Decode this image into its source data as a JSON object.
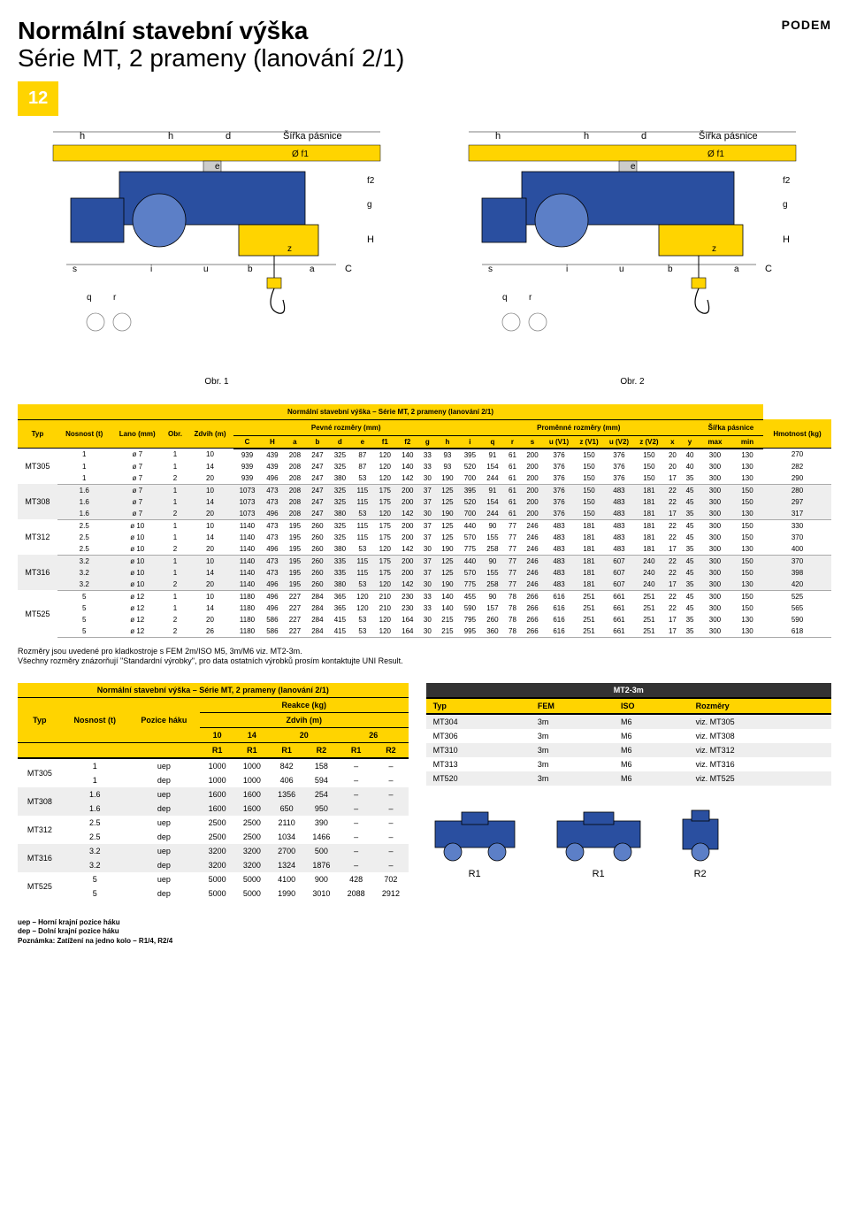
{
  "logo": "PODEM",
  "title_bold": "Normální stavební výška",
  "title_light": "Série MT, 2 prameny (lanování 2/1)",
  "page_number": "12",
  "diagram_labels": {
    "h": "h",
    "d": "d",
    "sirka": "Šířka pásnice",
    "e": "e",
    "f1": "Ø f1",
    "f2": "f2",
    "g": "g",
    "H": "H",
    "s": "s",
    "i": "i",
    "u": "u",
    "b": "b",
    "z": "z",
    "a": "a",
    "C": "C",
    "q": "q",
    "r": "r",
    "obr1": "Obr. 1",
    "obr2": "Obr. 2"
  },
  "main_table": {
    "title": "Normální stavební výška – Série MT, 2 prameny (lanování 2/1)",
    "header_groups": {
      "typ": "Typ",
      "nosnost": "Nosnost (t)",
      "lano": "Lano (mm)",
      "obr": "Obr.",
      "zdvih": "Zdvih (m)",
      "pevne": "Pevné rozměry (mm)",
      "promenne": "Proměnné rozměry (mm)",
      "sirka_pas": "Šířka pásnice",
      "hmotnost": "Hmotnost (kg)"
    },
    "cols": [
      "C",
      "H",
      "a",
      "b",
      "d",
      "e",
      "f1",
      "f2",
      "g",
      "h",
      "i",
      "q",
      "r",
      "s",
      "u (V1)",
      "z (V1)",
      "u (V2)",
      "z (V2)",
      "x",
      "y",
      "max",
      "min"
    ],
    "groups": [
      {
        "typ": "MT305",
        "rows": [
          [
            "1",
            "ø 7",
            "1",
            "10",
            "939",
            "439",
            "208",
            "247",
            "325",
            "87",
            "120",
            "140",
            "33",
            "93",
            "395",
            "91",
            "61",
            "200",
            "376",
            "150",
            "376",
            "150",
            "20",
            "40",
            "300",
            "130",
            "270"
          ],
          [
            "1",
            "ø 7",
            "1",
            "14",
            "939",
            "439",
            "208",
            "247",
            "325",
            "87",
            "120",
            "140",
            "33",
            "93",
            "520",
            "154",
            "61",
            "200",
            "376",
            "150",
            "376",
            "150",
            "20",
            "40",
            "300",
            "130",
            "282"
          ],
          [
            "1",
            "ø 7",
            "2",
            "20",
            "939",
            "496",
            "208",
            "247",
            "380",
            "53",
            "120",
            "142",
            "30",
            "190",
            "700",
            "244",
            "61",
            "200",
            "376",
            "150",
            "376",
            "150",
            "17",
            "35",
            "300",
            "130",
            "290"
          ]
        ]
      },
      {
        "typ": "MT308",
        "rows": [
          [
            "1.6",
            "ø 7",
            "1",
            "10",
            "1073",
            "473",
            "208",
            "247",
            "325",
            "115",
            "175",
            "200",
            "37",
            "125",
            "395",
            "91",
            "61",
            "200",
            "376",
            "150",
            "483",
            "181",
            "22",
            "45",
            "300",
            "150",
            "280"
          ],
          [
            "1.6",
            "ø 7",
            "1",
            "14",
            "1073",
            "473",
            "208",
            "247",
            "325",
            "115",
            "175",
            "200",
            "37",
            "125",
            "520",
            "154",
            "61",
            "200",
            "376",
            "150",
            "483",
            "181",
            "22",
            "45",
            "300",
            "150",
            "297"
          ],
          [
            "1.6",
            "ø 7",
            "2",
            "20",
            "1073",
            "496",
            "208",
            "247",
            "380",
            "53",
            "120",
            "142",
            "30",
            "190",
            "700",
            "244",
            "61",
            "200",
            "376",
            "150",
            "483",
            "181",
            "17",
            "35",
            "300",
            "130",
            "317"
          ]
        ]
      },
      {
        "typ": "MT312",
        "rows": [
          [
            "2.5",
            "ø 10",
            "1",
            "10",
            "1140",
            "473",
            "195",
            "260",
            "325",
            "115",
            "175",
            "200",
            "37",
            "125",
            "440",
            "90",
            "77",
            "246",
            "483",
            "181",
            "483",
            "181",
            "22",
            "45",
            "300",
            "150",
            "330"
          ],
          [
            "2.5",
            "ø 10",
            "1",
            "14",
            "1140",
            "473",
            "195",
            "260",
            "325",
            "115",
            "175",
            "200",
            "37",
            "125",
            "570",
            "155",
            "77",
            "246",
            "483",
            "181",
            "483",
            "181",
            "22",
            "45",
            "300",
            "150",
            "370"
          ],
          [
            "2.5",
            "ø 10",
            "2",
            "20",
            "1140",
            "496",
            "195",
            "260",
            "380",
            "53",
            "120",
            "142",
            "30",
            "190",
            "775",
            "258",
            "77",
            "246",
            "483",
            "181",
            "483",
            "181",
            "17",
            "35",
            "300",
            "130",
            "400"
          ]
        ]
      },
      {
        "typ": "MT316",
        "rows": [
          [
            "3.2",
            "ø 10",
            "1",
            "10",
            "1140",
            "473",
            "195",
            "260",
            "335",
            "115",
            "175",
            "200",
            "37",
            "125",
            "440",
            "90",
            "77",
            "246",
            "483",
            "181",
            "607",
            "240",
            "22",
            "45",
            "300",
            "150",
            "370"
          ],
          [
            "3.2",
            "ø 10",
            "1",
            "14",
            "1140",
            "473",
            "195",
            "260",
            "335",
            "115",
            "175",
            "200",
            "37",
            "125",
            "570",
            "155",
            "77",
            "246",
            "483",
            "181",
            "607",
            "240",
            "22",
            "45",
            "300",
            "150",
            "398"
          ],
          [
            "3.2",
            "ø 10",
            "2",
            "20",
            "1140",
            "496",
            "195",
            "260",
            "380",
            "53",
            "120",
            "142",
            "30",
            "190",
            "775",
            "258",
            "77",
            "246",
            "483",
            "181",
            "607",
            "240",
            "17",
            "35",
            "300",
            "130",
            "420"
          ]
        ]
      },
      {
        "typ": "MT525",
        "rows": [
          [
            "5",
            "ø 12",
            "1",
            "10",
            "1180",
            "496",
            "227",
            "284",
            "365",
            "120",
            "210",
            "230",
            "33",
            "140",
            "455",
            "90",
            "78",
            "266",
            "616",
            "251",
            "661",
            "251",
            "22",
            "45",
            "300",
            "150",
            "525"
          ],
          [
            "5",
            "ø 12",
            "1",
            "14",
            "1180",
            "496",
            "227",
            "284",
            "365",
            "120",
            "210",
            "230",
            "33",
            "140",
            "590",
            "157",
            "78",
            "266",
            "616",
            "251",
            "661",
            "251",
            "22",
            "45",
            "300",
            "150",
            "565"
          ],
          [
            "5",
            "ø 12",
            "2",
            "20",
            "1180",
            "586",
            "227",
            "284",
            "415",
            "53",
            "120",
            "164",
            "30",
            "215",
            "795",
            "260",
            "78",
            "266",
            "616",
            "251",
            "661",
            "251",
            "17",
            "35",
            "300",
            "130",
            "590"
          ],
          [
            "5",
            "ø 12",
            "2",
            "26",
            "1180",
            "586",
            "227",
            "284",
            "415",
            "53",
            "120",
            "164",
            "30",
            "215",
            "995",
            "360",
            "78",
            "266",
            "616",
            "251",
            "661",
            "251",
            "17",
            "35",
            "300",
            "130",
            "618"
          ]
        ]
      }
    ]
  },
  "notes": {
    "n1": "Rozměry jsou uvedené pro kladkostroje s FEM 2m/ISO M5, 3m/M6 viz. MT2-3m.",
    "n2": "Všechny rozměry znázorňují \"Standardní výrobky\", pro data ostatních výrobků prosím kontaktujte UNI Result."
  },
  "reakce": {
    "title": "Normální stavební výška – Série MT, 2 prameny (lanování 2/1)",
    "reakce_label": "Reakce (kg)",
    "typ": "Typ",
    "nosnost": "Nosnost (t)",
    "pozice": "Pozice háku",
    "zdvih": "Zdvih (m)",
    "cols10": "10",
    "cols14": "14",
    "cols20": "20",
    "cols26": "26",
    "r1": "R1",
    "r2": "R2",
    "groups": [
      {
        "typ": "MT305",
        "rows": [
          [
            "1",
            "uep",
            "1000",
            "1000",
            "842",
            "158",
            "–",
            "–"
          ],
          [
            "1",
            "dep",
            "1000",
            "1000",
            "406",
            "594",
            "–",
            "–"
          ]
        ]
      },
      {
        "typ": "MT308",
        "rows": [
          [
            "1.6",
            "uep",
            "1600",
            "1600",
            "1356",
            "254",
            "–",
            "–"
          ],
          [
            "1.6",
            "dep",
            "1600",
            "1600",
            "650",
            "950",
            "–",
            "–"
          ]
        ]
      },
      {
        "typ": "MT312",
        "rows": [
          [
            "2.5",
            "uep",
            "2500",
            "2500",
            "2110",
            "390",
            "–",
            "–"
          ],
          [
            "2.5",
            "dep",
            "2500",
            "2500",
            "1034",
            "1466",
            "–",
            "–"
          ]
        ]
      },
      {
        "typ": "MT316",
        "rows": [
          [
            "3.2",
            "uep",
            "3200",
            "3200",
            "2700",
            "500",
            "–",
            "–"
          ],
          [
            "3.2",
            "dep",
            "3200",
            "3200",
            "1324",
            "1876",
            "–",
            "–"
          ]
        ]
      },
      {
        "typ": "MT525",
        "rows": [
          [
            "5",
            "uep",
            "5000",
            "5000",
            "4100",
            "900",
            "428",
            "702"
          ],
          [
            "5",
            "dep",
            "5000",
            "5000",
            "1990",
            "3010",
            "2088",
            "2912"
          ]
        ]
      }
    ]
  },
  "mt2": {
    "title": "MT2-3m",
    "cols": {
      "typ": "Typ",
      "fem": "FEM",
      "iso": "ISO",
      "roz": "Rozměry"
    },
    "rows": [
      [
        "MT304",
        "3m",
        "M6",
        "viz. MT305"
      ],
      [
        "MT306",
        "3m",
        "M6",
        "viz. MT308"
      ],
      [
        "MT310",
        "3m",
        "M6",
        "viz. MT312"
      ],
      [
        "MT313",
        "3m",
        "M6",
        "viz. MT316"
      ],
      [
        "MT520",
        "3m",
        "M6",
        "viz. MT525"
      ]
    ]
  },
  "bottom_labels": {
    "r1": "R1",
    "r1b": "R1",
    "r2": "R2"
  },
  "footnotes": {
    "uep": "uep – Horní krajní pozice háku",
    "dep": "dep – Dolní krajní pozice háku",
    "pozn": "Poznámka: Zatížení na jedno kolo – R1/4, R2/4"
  },
  "colors": {
    "yellow": "#ffd400",
    "blue": "#2a4fa0",
    "blue_light": "#5c7fc7",
    "gray": "#cccccc",
    "dark": "#333333"
  }
}
